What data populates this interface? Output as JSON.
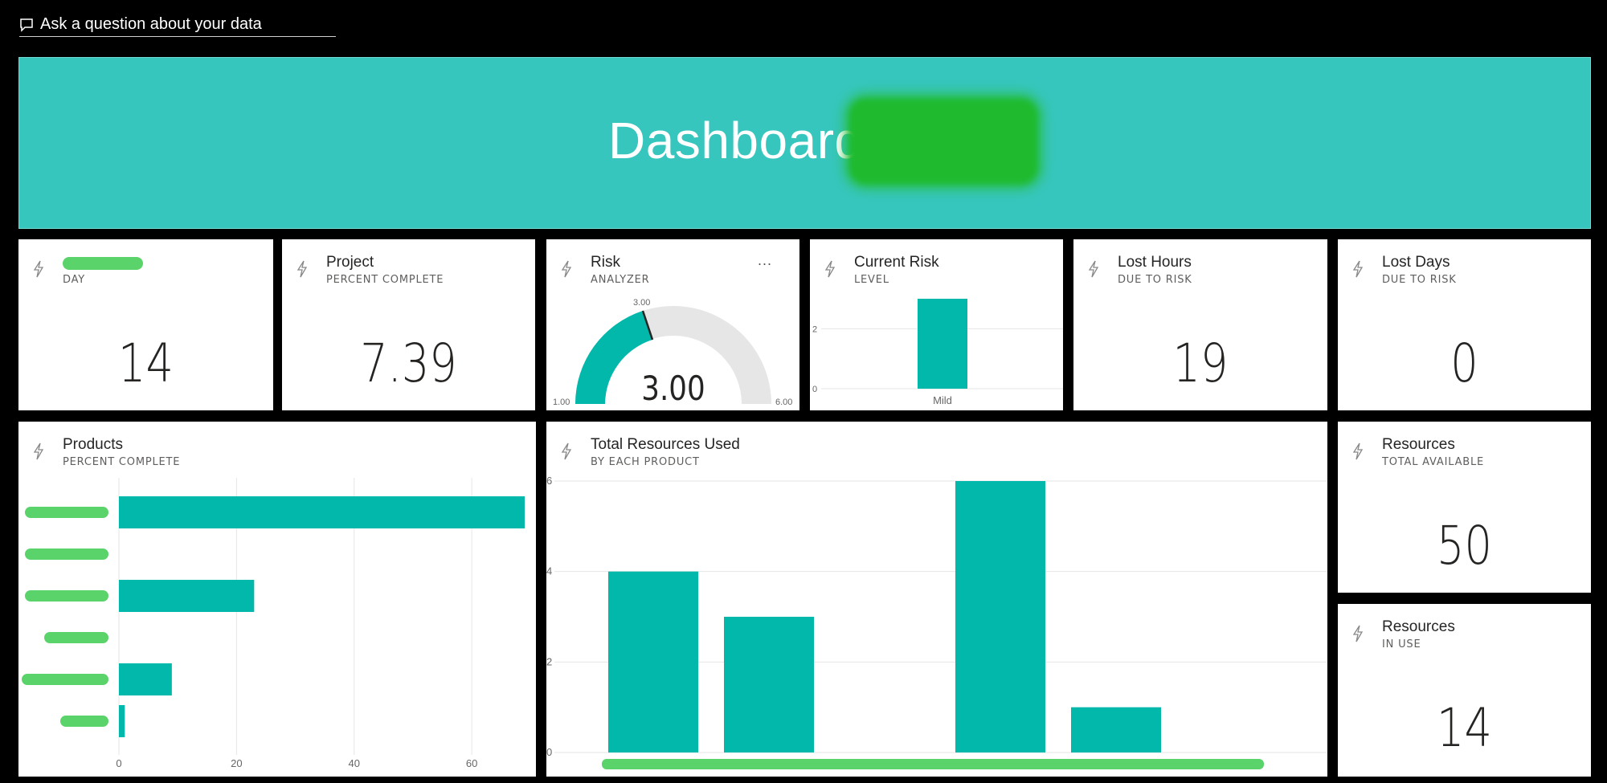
{
  "qa": {
    "label": "Ask a question about your data"
  },
  "banner": {
    "title": "Dashboard"
  },
  "kpi_tiles": {
    "day": {
      "title": "",
      "subtitle": "DAY",
      "value": "14"
    },
    "project": {
      "title": "Project",
      "subtitle": "PERCENT COMPLETE",
      "value": "7.39"
    },
    "lost_hours": {
      "title": "Lost Hours",
      "subtitle": "DUE TO RISK",
      "value": "19"
    },
    "lost_days": {
      "title": "Lost Days",
      "subtitle": "DUE TO RISK",
      "value": "0"
    },
    "resources_total": {
      "title": "Resources",
      "subtitle": "TOTAL AVAILABLE",
      "value": "50"
    },
    "resources_in_use": {
      "title": "Resources",
      "subtitle": "IN USE",
      "value": "14"
    }
  },
  "risk": {
    "title": "Risk",
    "subtitle": "ANALYZER",
    "more": "...",
    "value": "3.00",
    "target_label": "3.00",
    "min_label": "1.00",
    "max_label": "6.00"
  },
  "current_risk": {
    "title": "Current Risk",
    "subtitle": "LEVEL"
  },
  "products": {
    "title": "Products",
    "subtitle": "PERCENT COMPLETE"
  },
  "resources_used": {
    "title": "Total Resources Used",
    "subtitle": "BY EACH PRODUCT"
  },
  "colors": {
    "accent": "#01b8aa",
    "banner": "#37c6bd",
    "redaction": "#5ad36a"
  },
  "chart_data": [
    {
      "type": "gauge",
      "min": 1,
      "max": 6,
      "value": 3,
      "target": 3,
      "labels": {
        "value": "3.00",
        "target": "3.00",
        "min": "1.00",
        "max": "6.00"
      }
    },
    {
      "type": "bar",
      "categories": [
        "Mild"
      ],
      "values": [
        3
      ],
      "ylim": [
        0,
        3
      ],
      "yticks": [
        "0",
        "2"
      ],
      "grid": true
    },
    {
      "type": "bar",
      "orientation": "horizontal",
      "categories": [
        "",
        "",
        "",
        "",
        "",
        ""
      ],
      "values": [
        69,
        0,
        23,
        0,
        9,
        1
      ],
      "xlim": [
        0,
        69
      ],
      "xticks": [
        "0",
        "20",
        "40",
        "60"
      ],
      "grid": true
    },
    {
      "type": "bar",
      "categories": [
        "",
        "",
        "",
        "",
        ""
      ],
      "values": [
        4,
        3,
        0,
        6,
        1
      ],
      "ylim": [
        0,
        6
      ],
      "yticks": [
        "0",
        "2",
        "4",
        "6"
      ],
      "grid": true
    }
  ]
}
